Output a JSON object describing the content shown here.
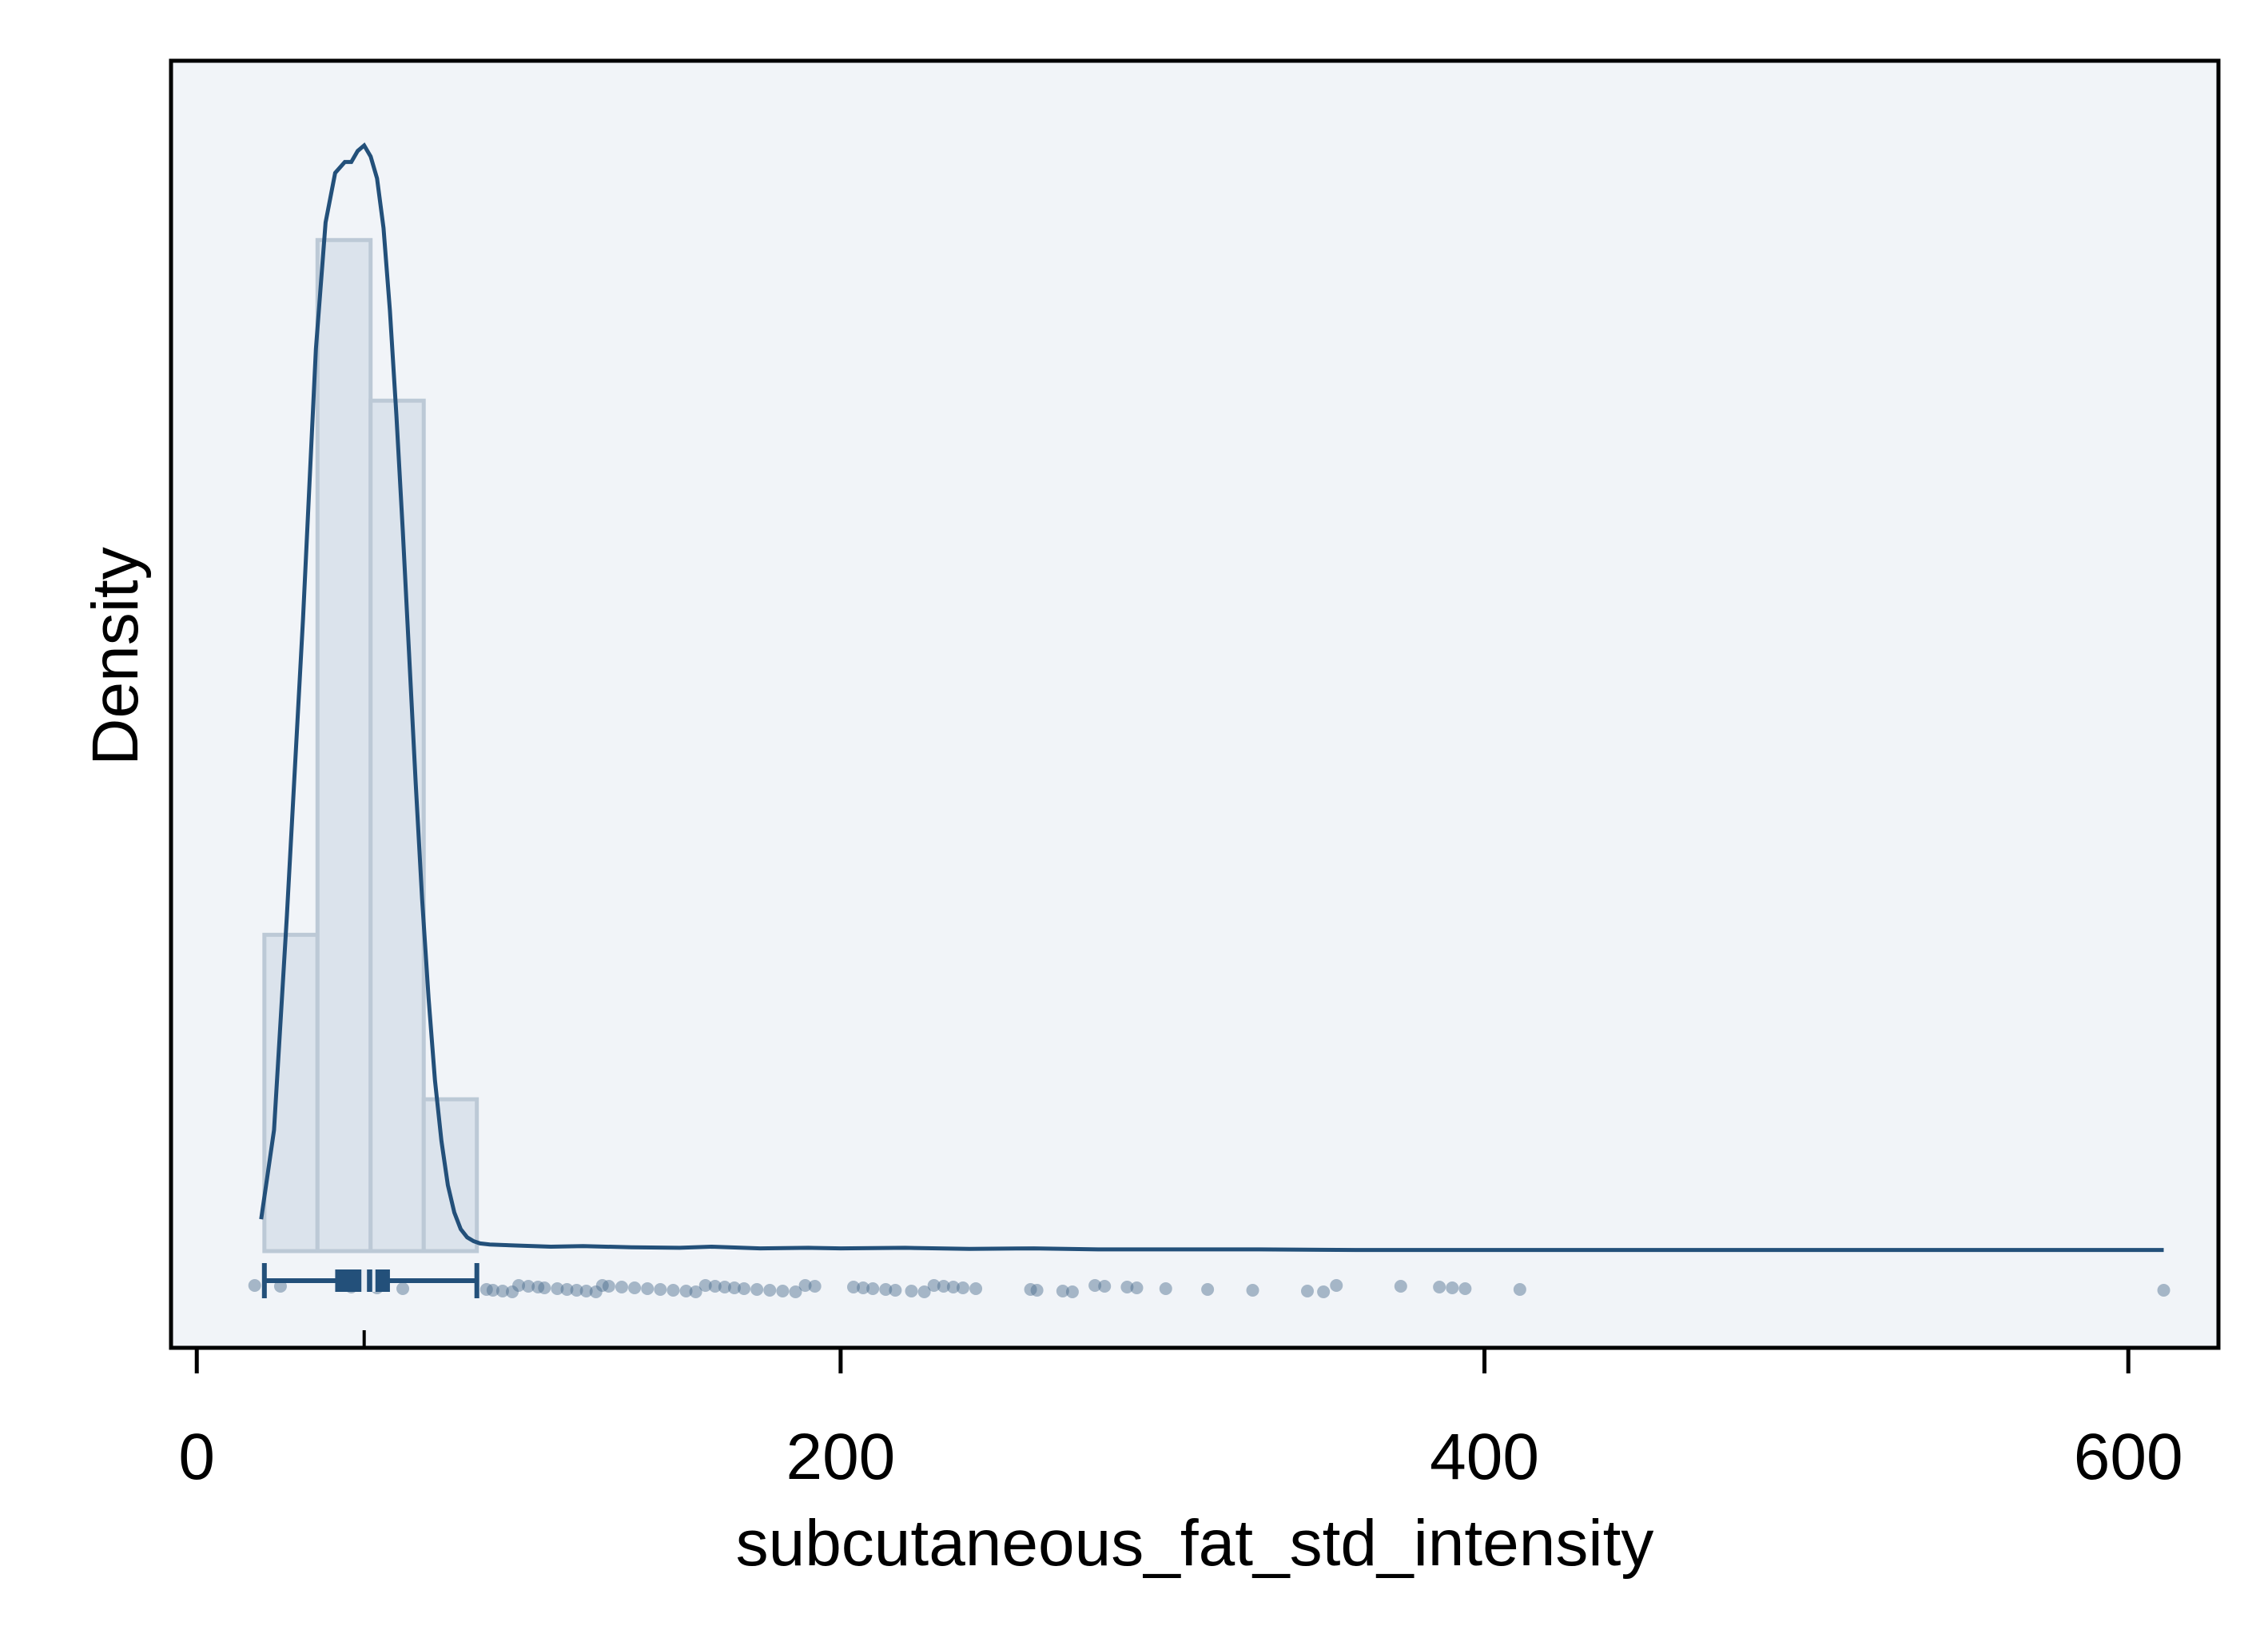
{
  "chart_data": {
    "type": "histogram",
    "xlabel": "subcutaneous_fat_std_intensity",
    "ylabel": "Density",
    "xlim": [
      -8,
      628
    ],
    "ylim": [
      0,
      0.021
    ],
    "x_ticks": [
      0,
      200,
      400,
      600
    ],
    "y_ticks_shown": false,
    "grid": false,
    "legend": "none",
    "colors": {
      "bar_fill": "#dbe3ec",
      "bar_stroke": "#bcc9d6",
      "line": "#23507a",
      "points": "#4a6a8c",
      "plot_bg": "#f1f4f8",
      "axis": "#000000"
    },
    "histogram": {
      "bin_edges": [
        21,
        37.5,
        54,
        70.5,
        87
      ],
      "densities": [
        0.00575,
        0.01838,
        0.01546,
        0.00276
      ]
    },
    "kde_line": {
      "x": [
        20,
        24,
        28,
        33,
        37,
        40,
        43,
        46,
        48,
        50,
        52,
        54,
        56,
        58,
        60,
        62,
        64,
        66,
        68,
        70,
        72,
        74,
        76,
        78,
        80,
        82,
        84,
        86,
        88,
        91,
        95,
        100,
        110,
        120,
        135,
        150,
        160,
        175,
        190,
        200,
        220,
        240,
        260,
        280,
        300,
        330,
        360,
        400,
        450,
        500,
        550,
        611
      ],
      "y": [
        0.00058,
        0.0022,
        0.0061,
        0.0115,
        0.0164,
        0.0187,
        0.0196,
        0.0198,
        0.0198,
        0.02,
        0.0201,
        0.0199,
        0.0195,
        0.0186,
        0.0171,
        0.0152,
        0.0131,
        0.0108,
        0.0085,
        0.0064,
        0.0046,
        0.0031,
        0.002,
        0.0012,
        0.0007,
        0.0004,
        0.00025,
        0.00018,
        0.00014,
        0.00012,
        0.00011,
        0.0001,
        8e-05,
        9e-05,
        7e-05,
        6e-05,
        8e-05,
        5e-05,
        6e-05,
        5e-05,
        6e-05,
        4e-05,
        5e-05,
        3e-05,
        3e-05,
        3e-05,
        2e-05,
        2e-05,
        2e-05,
        2e-05,
        2e-05,
        2e-05
      ]
    },
    "boxplot": {
      "whisker_low": 21,
      "q1": 43,
      "median": 52,
      "q3": 60,
      "whisker_high": 87,
      "mean": 55
    },
    "rug_points": [
      18,
      26,
      48,
      56,
      64,
      90,
      92,
      95,
      98,
      100,
      103,
      106,
      108,
      112,
      115,
      118,
      121,
      124,
      126,
      128,
      132,
      136,
      140,
      144,
      148,
      152,
      155,
      158,
      161,
      164,
      167,
      170,
      174,
      178,
      182,
      186,
      189,
      192,
      204,
      207,
      210,
      214,
      217,
      222,
      226,
      229,
      232,
      235,
      238,
      242,
      259,
      261,
      269,
      272,
      279,
      282,
      289,
      292,
      301,
      314,
      328,
      345,
      350,
      354,
      374,
      386,
      390,
      394,
      411,
      611
    ]
  }
}
